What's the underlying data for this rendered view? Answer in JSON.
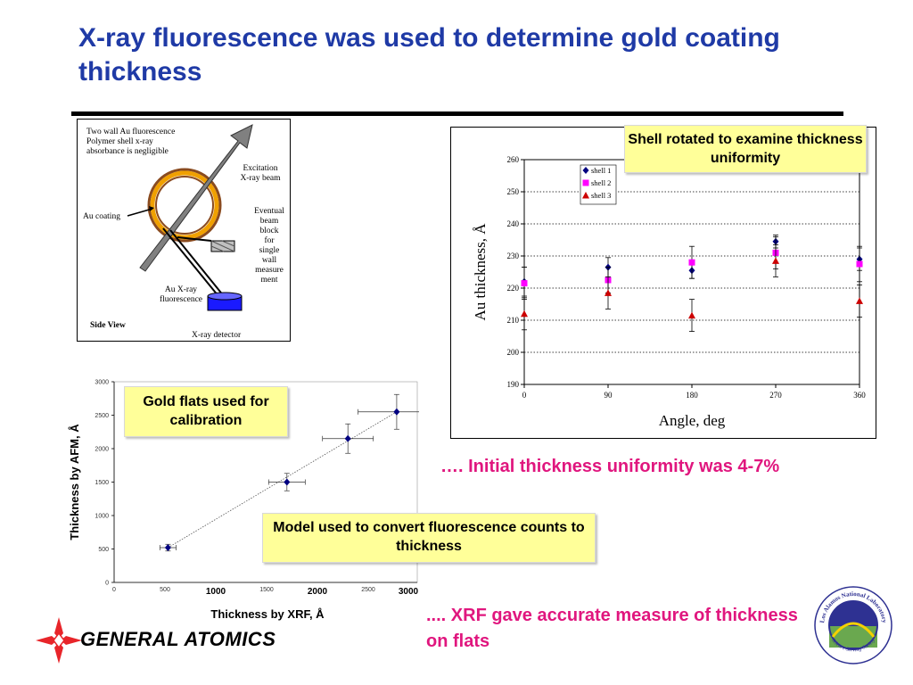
{
  "slide": {
    "title": "X-ray fluorescence was used to determine gold coating thickness"
  },
  "diagram": {
    "note_line1": "Two wall Au fluorescence",
    "note_line2": "Polymer shell x-ray",
    "note_line3": "absorbance is negligible",
    "excitation_line1": "Excitation",
    "excitation_line2": "X-ray beam",
    "au_coating": "Au coating",
    "beam_block_lines": [
      "Eventual",
      "beam",
      "block",
      "for",
      "single",
      "wall",
      "measure",
      "ment"
    ],
    "fluorescence_line1": "Au X-ray",
    "fluorescence_line2": "fluorescence",
    "side_view": "Side View",
    "detector": "X-ray detector"
  },
  "callouts": {
    "shell_rotated": "Shell rotated to examine thickness uniformity",
    "gold_flats": "Gold flats used for calibration",
    "model_used": "Model used to convert fluorescence counts to thickness",
    "initial_uniformity": "…. Initial thickness uniformity was 4-7%",
    "xrf_accurate": ".... XRF gave accurate measure of thickness on flats"
  },
  "logos": {
    "general_atomics": "GENERAL ATOMICS",
    "lanl_top": "Los Alamos National Laboratory",
    "lanl_bottom": "Science Serving Society",
    "colors": {
      "ga_red": "#e8252a",
      "lanl_blue": "#2e3192",
      "lanl_green": "#6aa84f"
    }
  },
  "chart_data": [
    {
      "type": "scatter",
      "xlabel": "Angle, deg",
      "ylabel": "Au thickness, Å",
      "x_ticks": [
        0,
        90,
        180,
        270,
        360
      ],
      "y_ticks": [
        190,
        200,
        210,
        220,
        230,
        240,
        250,
        260
      ],
      "xlim": [
        0,
        360
      ],
      "ylim": [
        190,
        260
      ],
      "grid": "horizontal dotted",
      "legend_position": "top-center",
      "series": [
        {
          "name": "shell 1",
          "color": "#000080",
          "marker": "diamond",
          "x": [
            0,
            90,
            180,
            270,
            360
          ],
          "y": [
            222,
            226.5,
            225.5,
            234.5,
            229
          ],
          "err": [
            4.5,
            3,
            2.5,
            2,
            3.5
          ]
        },
        {
          "name": "shell 2",
          "color": "#ff00ff",
          "marker": "square",
          "x": [
            0,
            90,
            180,
            270,
            360
          ],
          "y": [
            221.5,
            222.5,
            228,
            231,
            227.5
          ],
          "err": [
            5,
            4,
            5,
            5,
            5.5
          ]
        },
        {
          "name": "shell 3",
          "color": "#cc0000",
          "marker": "triangle",
          "x": [
            0,
            90,
            180,
            270,
            360
          ],
          "y": [
            212,
            218.5,
            211.5,
            228.5,
            216
          ],
          "err": [
            5,
            5,
            5,
            5,
            5
          ]
        }
      ]
    },
    {
      "type": "scatter",
      "xlabel": "Thickness by XRF, Å",
      "ylabel": "Thickness by AFM, Å",
      "x_ticks": [
        0,
        500,
        1000,
        1500,
        2000,
        2500,
        3000
      ],
      "y_ticks": [
        0,
        500,
        1000,
        1500,
        2000,
        2500,
        3000
      ],
      "bold_x_ticks": [
        "1000",
        "2000",
        "3000"
      ],
      "xlim": [
        0,
        3000
      ],
      "ylim": [
        0,
        3000
      ],
      "trendline": "dotted linear fit",
      "series": [
        {
          "color": "#000080",
          "marker": "diamond",
          "x": [
            530,
            1700,
            2300,
            2780
          ],
          "y": [
            520,
            1500,
            2150,
            2550
          ],
          "xerr": [
            80,
            180,
            250,
            380
          ],
          "yerr": [
            50,
            130,
            220,
            260
          ]
        }
      ]
    }
  ]
}
